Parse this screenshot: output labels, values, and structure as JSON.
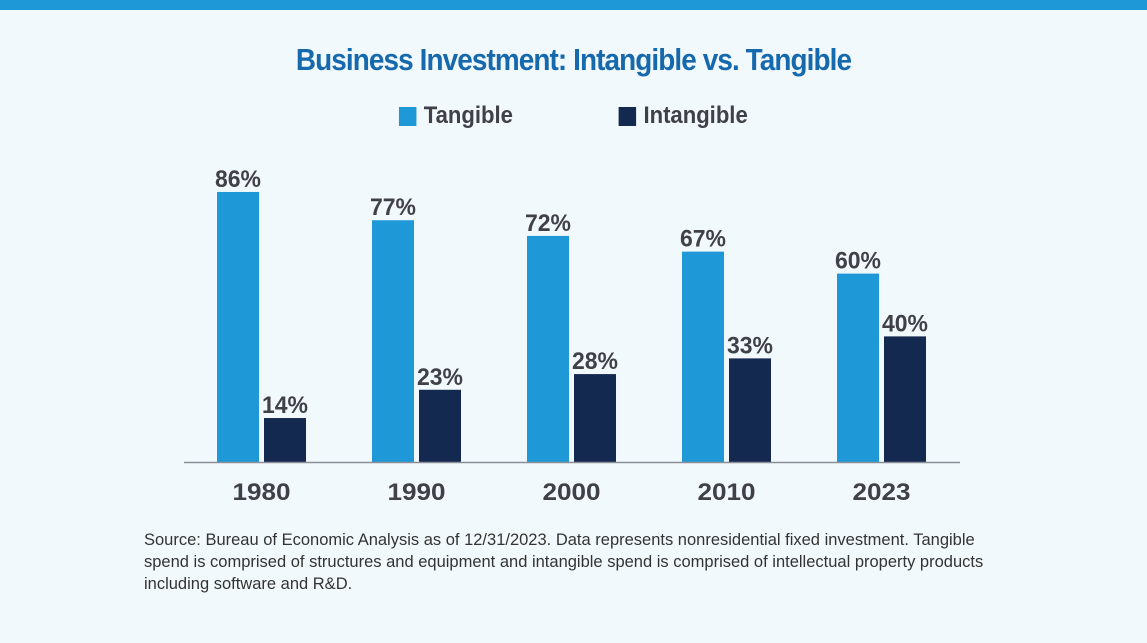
{
  "chart_data": {
    "type": "bar",
    "title": "Business Investment: Intangible vs. Tangible",
    "categories": [
      "1980",
      "1990",
      "2000",
      "2010",
      "2023"
    ],
    "series": [
      {
        "name": "Tangible",
        "values": [
          86,
          77,
          72,
          67,
          60
        ],
        "labels": [
          "86%",
          "77%",
          "72%",
          "67%",
          "60%"
        ],
        "color": "#1e98d6"
      },
      {
        "name": "Intangible",
        "values": [
          14,
          23,
          28,
          33,
          40
        ],
        "labels": [
          "14%",
          "23%",
          "28%",
          "33%",
          "40%"
        ],
        "color": "#14294f"
      }
    ],
    "ylim": [
      0,
      100
    ],
    "grid": false,
    "legend": "top",
    "xlabel": "",
    "ylabel": ""
  },
  "source": "Source: Bureau of Economic Analysis as of 12/31/2023. Data represents nonresidential fixed investment. Tangible spend is comprised of structures and equipment and intangible spend is comprised of intellectual property products including software and R&D.",
  "colors": {
    "accent": "#1e98d6",
    "title": "#1769ad",
    "background": "#f2f9fd"
  }
}
